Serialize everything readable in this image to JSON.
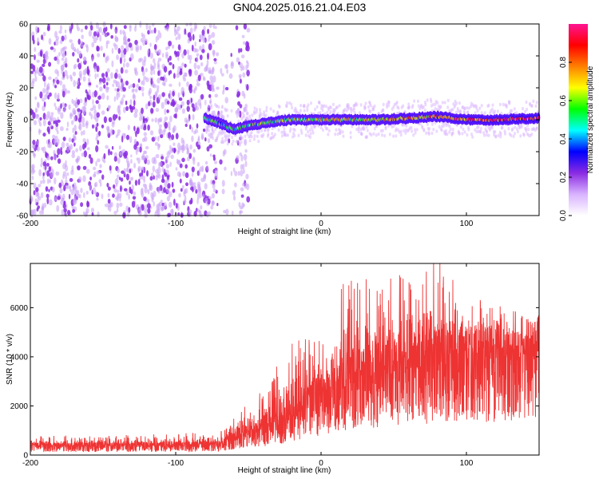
{
  "title": "GN04.2025.016.21.04.E03",
  "chart_data": [
    {
      "type": "heatmap",
      "xlabel": "Height of straight line (km)",
      "ylabel": "Frequency (Hz)",
      "xlim": [
        -200,
        150
      ],
      "ylim": [
        -60,
        60
      ],
      "xticks": [
        -200,
        -100,
        0,
        100
      ],
      "yticks": [
        60,
        40,
        20,
        0,
        -20,
        -40,
        -60
      ],
      "colorbar": {
        "label": "Normalized spectral amplitude",
        "range": [
          0,
          1
        ],
        "ticks": [
          0.0,
          0.2,
          0.4,
          0.6,
          0.8
        ],
        "tick_labels": [
          "0.0",
          "0.2",
          "0.4",
          "0.6",
          "0.8"
        ],
        "colormap": [
          "#ffffff",
          "#d9b3ff",
          "#8a2be2",
          "#0000ff",
          "#00ffff",
          "#00ff00",
          "#ffff00",
          "#ff8000",
          "#ff0000",
          "#ff1493"
        ]
      },
      "ridge": [
        {
          "x": -80,
          "y": 1
        },
        {
          "x": -70,
          "y": -2
        },
        {
          "x": -60,
          "y": -6
        },
        {
          "x": -50,
          "y": -4
        },
        {
          "x": -40,
          "y": -2
        },
        {
          "x": -30,
          "y": -1
        },
        {
          "x": -20,
          "y": 0
        },
        {
          "x": 0,
          "y": 0
        },
        {
          "x": 20,
          "y": 0
        },
        {
          "x": 40,
          "y": 0
        },
        {
          "x": 60,
          "y": 1
        },
        {
          "x": 80,
          "y": 2
        },
        {
          "x": 100,
          "y": 0
        },
        {
          "x": 120,
          "y": 0
        },
        {
          "x": 150,
          "y": 1
        }
      ],
      "noise_region_x": [
        -200,
        -50
      ],
      "grid": false
    },
    {
      "type": "line",
      "xlabel": "Height of straight line (km)",
      "ylabel": "SNR (10 * v/v)",
      "xlim": [
        -200,
        150
      ],
      "ylim": [
        0,
        7800
      ],
      "xticks": [
        -200,
        -100,
        0,
        100
      ],
      "yticks": [
        0,
        2000,
        4000,
        6000
      ],
      "series": [
        {
          "color": "#ee3333",
          "envelope": [
            {
              "x": -200,
              "mean": 350,
              "max": 800
            },
            {
              "x": -150,
              "mean": 350,
              "max": 800
            },
            {
              "x": -100,
              "mean": 380,
              "max": 900
            },
            {
              "x": -70,
              "mean": 400,
              "max": 1000
            },
            {
              "x": -55,
              "mean": 800,
              "max": 2000
            },
            {
              "x": -40,
              "mean": 1000,
              "max": 2700
            },
            {
              "x": -20,
              "mean": 1500,
              "max": 4700
            },
            {
              "x": 0,
              "mean": 2300,
              "max": 5000
            },
            {
              "x": 20,
              "mean": 3000,
              "max": 7600
            },
            {
              "x": 40,
              "mean": 3200,
              "max": 7000
            },
            {
              "x": 60,
              "mean": 3500,
              "max": 7800
            },
            {
              "x": 80,
              "mean": 3700,
              "max": 7900
            },
            {
              "x": 100,
              "mean": 3800,
              "max": 6700
            },
            {
              "x": 120,
              "mean": 3800,
              "max": 6200
            },
            {
              "x": 150,
              "mean": 4000,
              "max": 5600
            }
          ]
        }
      ],
      "grid": false
    }
  ]
}
